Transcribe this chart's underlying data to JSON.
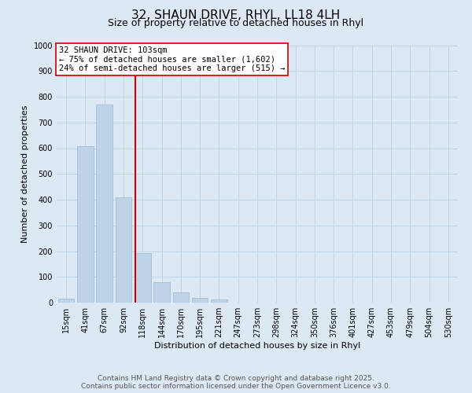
{
  "title": "32, SHAUN DRIVE, RHYL, LL18 4LH",
  "subtitle": "Size of property relative to detached houses in Rhyl",
  "xlabel": "Distribution of detached houses by size in Rhyl",
  "ylabel": "Number of detached properties",
  "bar_labels": [
    "15sqm",
    "41sqm",
    "67sqm",
    "92sqm",
    "118sqm",
    "144sqm",
    "170sqm",
    "195sqm",
    "221sqm",
    "247sqm",
    "273sqm",
    "298sqm",
    "324sqm",
    "350sqm",
    "376sqm",
    "401sqm",
    "427sqm",
    "453sqm",
    "479sqm",
    "504sqm",
    "530sqm"
  ],
  "bar_values": [
    15,
    608,
    770,
    410,
    192,
    78,
    40,
    18,
    12,
    0,
    0,
    0,
    0,
    0,
    0,
    0,
    0,
    0,
    0,
    0,
    0
  ],
  "bar_color": "#bdd4e8",
  "bar_edge_color": "#9ab8d4",
  "vline_x": 3.62,
  "vline_color": "#cc0000",
  "annotation_title": "32 SHAUN DRIVE: 103sqm",
  "annotation_line1": "← 75% of detached houses are smaller (1,602)",
  "annotation_line2": "24% of semi-detached houses are larger (515) →",
  "annotation_box_facecolor": "#ffffff",
  "annotation_box_edgecolor": "#cc0000",
  "ylim": [
    0,
    1000
  ],
  "yticks": [
    0,
    100,
    200,
    300,
    400,
    500,
    600,
    700,
    800,
    900,
    1000
  ],
  "grid_color": "#c0d4e8",
  "background_color": "#dce8f4",
  "footer_line1": "Contains HM Land Registry data © Crown copyright and database right 2025.",
  "footer_line2": "Contains public sector information licensed under the Open Government Licence v3.0.",
  "title_fontsize": 11,
  "subtitle_fontsize": 9,
  "axis_label_fontsize": 8,
  "tick_fontsize": 7,
  "footer_fontsize": 6.5,
  "annotation_fontsize": 7.5
}
